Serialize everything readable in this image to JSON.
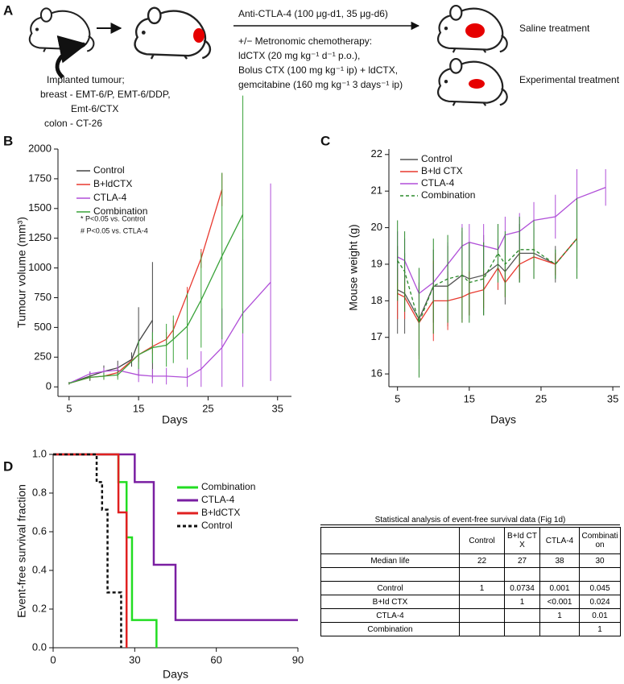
{
  "panel_labels": [
    "A",
    "B",
    "C",
    "D"
  ],
  "panel_a": {
    "treatment_line": "Anti-CTLA-4 (100 μg-d1, 35 μg-d6)",
    "chemo_lines": [
      "+/− Metronomic chemotherapy:",
      "ldCTX (20 mg kg⁻¹ d⁻¹ p.o.),",
      "Bolus CTX (100 mg kg⁻¹ ip) + ldCTX,",
      "gemcitabine (160 mg kg⁻¹ 3 days⁻¹ ip)"
    ],
    "tumour_lines": [
      "Implanted tumour;",
      "breast - EMT-6/P, EMT-6/DDP,",
      "Emt-6/CTX",
      "colon - CT-26"
    ],
    "outcomes": [
      "Saline treatment",
      "Experimental treatment"
    ]
  },
  "chart_data": [
    {
      "type": "line",
      "xlabel": "Days",
      "ylabel": "Tumour volume (mm³)",
      "xlim": [
        3.4,
        37
      ],
      "ylim": [
        -80,
        2000
      ],
      "xticks": [
        5,
        15,
        25,
        35
      ],
      "yticks": [
        0,
        250,
        500,
        750,
        1000,
        1250,
        1500,
        1750,
        2000
      ],
      "annotations": [
        "* P<0.05 vs. Control",
        "# P<0.05 vs. CTLA-4"
      ],
      "series": [
        {
          "name": "Control",
          "color": "#444444",
          "x": [
            5,
            8,
            10,
            12,
            14,
            15,
            17
          ],
          "values": [
            30,
            90,
            130,
            160,
            230,
            380,
            560
          ],
          "errors": [
            10,
            40,
            50,
            60,
            60,
            290,
            490
          ]
        },
        {
          "name": "B+ldCTX",
          "color": "#e8392f",
          "x": [
            5,
            8,
            10,
            12,
            15,
            17,
            19,
            20,
            22,
            24,
            27
          ],
          "values": [
            30,
            80,
            90,
            120,
            270,
            340,
            400,
            480,
            780,
            1080,
            1660
          ],
          "errors": [
            10,
            20,
            30,
            40,
            60,
            60,
            60,
            80,
            60,
            80,
            140
          ]
        },
        {
          "name": "CTLA-4",
          "color": "#b04fd8",
          "x": [
            5,
            8,
            10,
            12,
            15,
            17,
            19,
            22,
            24,
            27,
            30,
            34
          ],
          "values": [
            30,
            110,
            130,
            140,
            100,
            90,
            90,
            80,
            150,
            330,
            620,
            880
          ],
          "errors": [
            10,
            20,
            30,
            40,
            60,
            60,
            70,
            80,
            150,
            330,
            620,
            830
          ]
        },
        {
          "name": "Combination",
          "color": "#3aa33a",
          "x": [
            5,
            8,
            10,
            12,
            15,
            17,
            19,
            20,
            22,
            24,
            27,
            30
          ],
          "values": [
            30,
            80,
            90,
            100,
            270,
            330,
            350,
            400,
            510,
            730,
            1100,
            1450
          ],
          "errors": [
            10,
            20,
            30,
            40,
            120,
            130,
            180,
            200,
            280,
            400,
            700,
            1000
          ]
        }
      ]
    },
    {
      "type": "line",
      "xlabel": "Days",
      "ylabel": "Mouse weight (g)",
      "xlim": [
        3.8,
        36
      ],
      "ylim": [
        15.65,
        22.15
      ],
      "xticks": [
        5,
        15,
        25,
        35
      ],
      "yticks": [
        16,
        17,
        18,
        19,
        20,
        21,
        22
      ],
      "series": [
        {
          "name": "Control",
          "color": "#555555",
          "x": [
            5,
            6,
            8,
            10,
            12,
            14,
            15,
            17,
            19,
            20,
            22,
            24,
            27,
            30
          ],
          "values": [
            18.3,
            18.2,
            17.5,
            18.4,
            18.4,
            18.7,
            18.6,
            18.7,
            19.0,
            18.8,
            19.3,
            19.3,
            19.0,
            19.7
          ],
          "errors": [
            1.2,
            1.1,
            1.0,
            1.0,
            1.1,
            1.2,
            1.0,
            1.1,
            0.7,
            0.9,
            0.8,
            0.7,
            0.5,
            0.8
          ]
        },
        {
          "name": "B+ld CTX",
          "color": "#e8392f",
          "x": [
            5,
            6,
            8,
            10,
            12,
            14,
            15,
            17,
            19,
            20,
            22,
            24,
            27,
            30
          ],
          "values": [
            18.2,
            18.1,
            17.4,
            18.0,
            18.0,
            18.1,
            18.2,
            18.3,
            18.9,
            18.5,
            19.0,
            19.2,
            19.0,
            19.7
          ],
          "errors": [
            0.7,
            0.6,
            1.0,
            1.1,
            0.8,
            0.7,
            0.6,
            0.5,
            0.6,
            0.4,
            0.4,
            0.3,
            0.3,
            0.5
          ]
        },
        {
          "name": "CTLA-4",
          "color": "#b04fd8",
          "x": [
            5,
            6,
            8,
            10,
            12,
            14,
            15,
            17,
            19,
            20,
            22,
            24,
            27,
            30,
            34
          ],
          "values": [
            19.2,
            19.1,
            18.2,
            18.5,
            19.0,
            19.5,
            19.6,
            19.5,
            19.4,
            19.8,
            19.9,
            20.2,
            20.3,
            20.8,
            21.1
          ],
          "errors": [
            0.7,
            0.6,
            0.3,
            0.5,
            0.6,
            0.6,
            0.5,
            0.6,
            0.7,
            0.5,
            0.5,
            0.5,
            0.6,
            0.8,
            0.5
          ]
        },
        {
          "name": "Combination",
          "color": "#2a8a2a",
          "dashed": true,
          "x": [
            5,
            6,
            8,
            10,
            12,
            14,
            15,
            17,
            19,
            20,
            22,
            24,
            27,
            30
          ],
          "values": [
            19.1,
            18.8,
            17.4,
            18.4,
            18.6,
            18.7,
            18.5,
            18.6,
            19.3,
            19.0,
            19.4,
            19.4,
            19.0,
            19.7
          ],
          "errors": [
            1.1,
            1.1,
            1.5,
            1.3,
            1.2,
            1.3,
            1.1,
            1.0,
            0.8,
            0.9,
            0.9,
            0.8,
            0.4,
            1.1
          ]
        }
      ]
    },
    {
      "type": "step",
      "xlabel": "Days",
      "ylabel": "Event-free survival fraction",
      "xlim": [
        0,
        90
      ],
      "ylim": [
        0,
        1
      ],
      "xticks": [
        0,
        30,
        60,
        90
      ],
      "yticks": [
        {
          "value": 0,
          "label": "0.0"
        },
        {
          "value": 0.2,
          "label": "0.2"
        },
        {
          "value": 0.4,
          "label": "0.4"
        },
        {
          "value": 0.6,
          "label": "0.6"
        },
        {
          "value": 0.8,
          "label": "0.8"
        },
        {
          "value": 1,
          "label": "1.0"
        }
      ],
      "series": [
        {
          "name": "Combination",
          "color": "#22dd22",
          "x": [
            0,
            24,
            27,
            29,
            38
          ],
          "values": [
            1,
            0.857,
            0.571,
            0.143,
            0
          ]
        },
        {
          "name": "CTLA-4",
          "color": "#7a1fa2",
          "x": [
            0,
            30,
            37,
            45,
            90
          ],
          "values": [
            1,
            0.857,
            0.429,
            0.143,
            0.143
          ]
        },
        {
          "name": "B+ldCTX",
          "color": "#e02020",
          "x": [
            0,
            24,
            27
          ],
          "values": [
            1,
            0.7,
            0
          ]
        },
        {
          "name": "Control",
          "color": "#111111",
          "dashed": true,
          "x": [
            0,
            16,
            18,
            20,
            25
          ],
          "values": [
            1,
            0.857,
            0.714,
            0.286,
            0
          ]
        }
      ]
    }
  ],
  "table": {
    "title": "Statistical analysis of event-free survival data (Fig 1d)",
    "columns": [
      "Control",
      "B+Id CTX",
      "CTLA-4",
      "Combination"
    ],
    "rows": [
      [
        "Median life",
        22,
        27,
        38,
        30
      ],
      [
        null,
        null,
        null,
        null,
        null
      ],
      [
        "Control",
        1,
        0.0734,
        0.001,
        0.045
      ],
      [
        "B+Id CTX",
        null,
        1,
        "<0.001",
        0.024
      ],
      [
        "CTLA-4",
        null,
        null,
        1,
        0.01
      ],
      [
        "Combination",
        null,
        null,
        null,
        1
      ]
    ]
  }
}
